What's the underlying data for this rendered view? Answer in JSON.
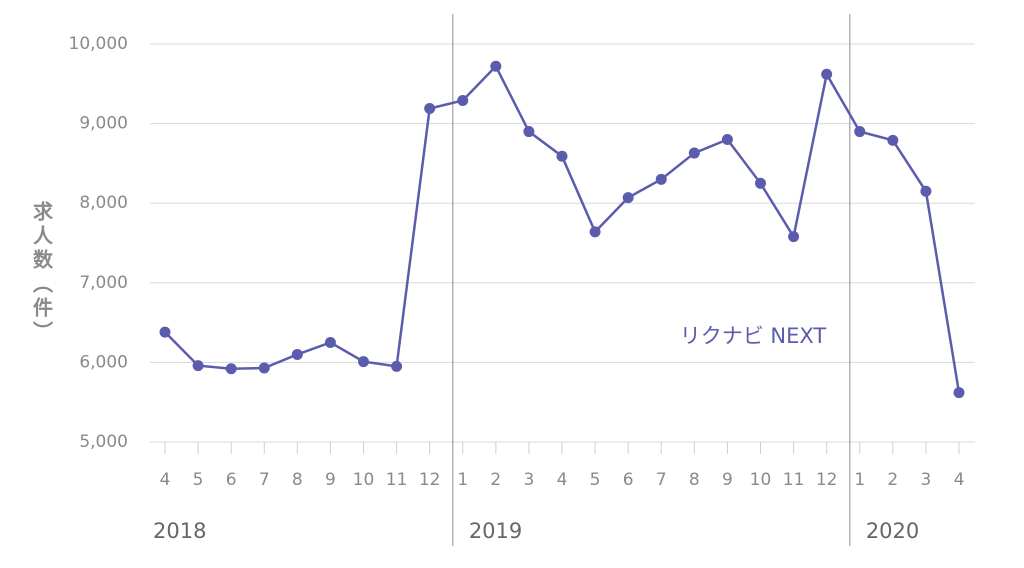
{
  "chart_data": {
    "type": "line",
    "y_label": "求人数（件）",
    "annotation": "リクナビ NEXT",
    "years": [
      "2018",
      "2019",
      "2020"
    ],
    "categories": [
      "4",
      "5",
      "6",
      "7",
      "8",
      "9",
      "10",
      "11",
      "12",
      "1",
      "2",
      "3",
      "4",
      "5",
      "6",
      "7",
      "8",
      "9",
      "10",
      "11",
      "12",
      "1",
      "2",
      "3",
      "4"
    ],
    "series": [
      {
        "name": "リクナビ NEXT",
        "color": "#5c5cae",
        "values": [
          6380,
          5960,
          5920,
          5930,
          6100,
          6250,
          6010,
          5950,
          9190,
          9290,
          9720,
          8900,
          8590,
          7640,
          8070,
          8300,
          8630,
          8800,
          8250,
          7580,
          9620,
          8900,
          8790,
          8150,
          5620
        ]
      }
    ],
    "ylim": [
      5000,
      10000
    ],
    "yticks": [
      {
        "value": 5000,
        "label": "5,000"
      },
      {
        "value": 6000,
        "label": "6,000"
      },
      {
        "value": 7000,
        "label": "7,000"
      },
      {
        "value": 8000,
        "label": "8,000"
      },
      {
        "value": 9000,
        "label": "9,000"
      },
      {
        "value": 10000,
        "label": "10,000"
      }
    ],
    "grid": true
  }
}
